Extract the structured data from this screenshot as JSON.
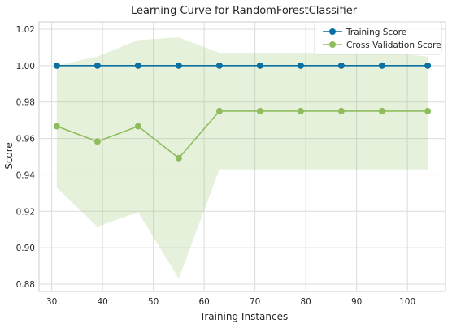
{
  "chart_data": {
    "type": "line",
    "title": "Learning Curve for RandomForestClassifier",
    "xlabel": "Training Instances",
    "ylabel": "Score",
    "xlim": [
      27.5,
      107.5
    ],
    "ylim": [
      0.876,
      1.024
    ],
    "x_ticks": [
      30,
      40,
      50,
      60,
      70,
      80,
      90,
      100
    ],
    "y_ticks": [
      0.88,
      0.9,
      0.92,
      0.94,
      0.96,
      0.98,
      1.0,
      1.02
    ],
    "y_tick_labels": [
      "0.88",
      "0.90",
      "0.92",
      "0.94",
      "0.96",
      "0.98",
      "1.00",
      "1.02"
    ],
    "grid": true,
    "legend_position": "top-right",
    "x": [
      31,
      39,
      47,
      55,
      63,
      71,
      79,
      87,
      95,
      104
    ],
    "series": [
      {
        "name": "Training Score",
        "color": "#1f77b4",
        "line_color": "#0a6fa1",
        "values": [
          1.0,
          1.0,
          1.0,
          1.0,
          1.0,
          1.0,
          1.0,
          1.0,
          1.0,
          1.0
        ],
        "band_lower": [
          1.0,
          1.0,
          1.0,
          1.0,
          1.0,
          1.0,
          1.0,
          1.0,
          1.0,
          1.0
        ],
        "band_upper": [
          1.0,
          1.0,
          1.0,
          1.0,
          1.0,
          1.0,
          1.0,
          1.0,
          1.0,
          1.0
        ]
      },
      {
        "name": "Cross Validation Score",
        "color": "#8fbd5e",
        "values": [
          0.9667,
          0.9583,
          0.9667,
          0.9492,
          0.975,
          0.975,
          0.975,
          0.975,
          0.975,
          0.975
        ],
        "band_lower": [
          0.933,
          0.9115,
          0.9195,
          0.883,
          0.943,
          0.943,
          0.943,
          0.943,
          0.943,
          0.943
        ],
        "band_upper": [
          1.0,
          1.005,
          1.014,
          1.0155,
          1.007,
          1.007,
          1.007,
          1.007,
          1.007,
          1.005
        ]
      }
    ]
  }
}
